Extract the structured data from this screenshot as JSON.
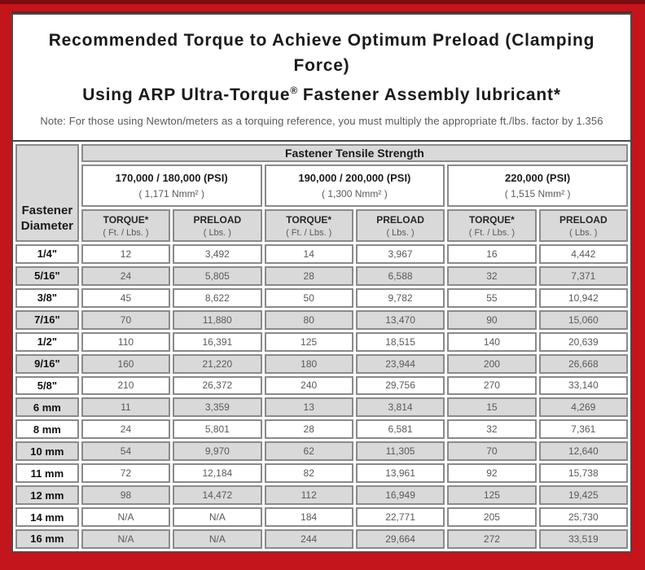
{
  "frame": {
    "outer_red": "#c3151b",
    "top_strip_maroon": "#7a0d12",
    "row_gray": "#d9d9d9",
    "cell_border_gray": "#8a8a8a"
  },
  "title": {
    "line1": "Recommended Torque to Achieve Optimum Preload (Clamping Force)",
    "line2_prefix": "Using ARP Ultra-Torque",
    "line2_reg": "®",
    "line2_suffix": " Fastener Assembly lubricant*",
    "note": "Note: For those using Newton/meters as a torquing reference, you must multiply the appropriate ft./lbs. factor by 1.356"
  },
  "table": {
    "corner": {
      "line1": "Fastener",
      "line2": "Diameter"
    },
    "tensile_header": "Fastener Tensile Strength",
    "psi_groups": [
      {
        "psi": "170,000 / 180,000 (PSI)",
        "nmm": "( 1,171 Nmm² )"
      },
      {
        "psi": "190,000 / 200,000 (PSI)",
        "nmm": "( 1,300 Nmm² )"
      },
      {
        "psi": "220,000 (PSI)",
        "nmm": "( 1,515 Nmm² )"
      }
    ],
    "sub": {
      "torque_label": "TORQUE*",
      "torque_unit": "( Ft. / Lbs. )",
      "preload_label": "PRELOAD",
      "preload_unit": "( Lbs. )"
    },
    "rows": [
      {
        "diameter": "1/4\"",
        "values": [
          "12",
          "3,492",
          "14",
          "3,967",
          "16",
          "4,442"
        ]
      },
      {
        "diameter": "5/16\"",
        "values": [
          "24",
          "5,805",
          "28",
          "6,588",
          "32",
          "7,371"
        ]
      },
      {
        "diameter": "3/8\"",
        "values": [
          "45",
          "8,622",
          "50",
          "9,782",
          "55",
          "10,942"
        ]
      },
      {
        "diameter": "7/16\"",
        "values": [
          "70",
          "11,880",
          "80",
          "13,470",
          "90",
          "15,060"
        ]
      },
      {
        "diameter": "1/2\"",
        "values": [
          "110",
          "16,391",
          "125",
          "18,515",
          "140",
          "20,639"
        ]
      },
      {
        "diameter": "9/16\"",
        "values": [
          "160",
          "21,220",
          "180",
          "23,944",
          "200",
          "26,668"
        ]
      },
      {
        "diameter": "5/8\"",
        "values": [
          "210",
          "26,372",
          "240",
          "29,756",
          "270",
          "33,140"
        ]
      },
      {
        "diameter": "6 mm",
        "values": [
          "11",
          "3,359",
          "13",
          "3,814",
          "15",
          "4,269"
        ]
      },
      {
        "diameter": "8 mm",
        "values": [
          "24",
          "5,801",
          "28",
          "6,581",
          "32",
          "7,361"
        ]
      },
      {
        "diameter": "10 mm",
        "values": [
          "54",
          "9,970",
          "62",
          "11,305",
          "70",
          "12,640"
        ]
      },
      {
        "diameter": "11 mm",
        "values": [
          "72",
          "12,184",
          "82",
          "13,961",
          "92",
          "15,738"
        ]
      },
      {
        "diameter": "12 mm",
        "values": [
          "98",
          "14,472",
          "112",
          "16,949",
          "125",
          "19,425"
        ]
      },
      {
        "diameter": "14 mm",
        "values": [
          "N/A",
          "N/A",
          "184",
          "22,771",
          "205",
          "25,730"
        ]
      },
      {
        "diameter": "16 mm",
        "values": [
          "N/A",
          "N/A",
          "244",
          "29,664",
          "272",
          "33,519"
        ]
      }
    ]
  }
}
